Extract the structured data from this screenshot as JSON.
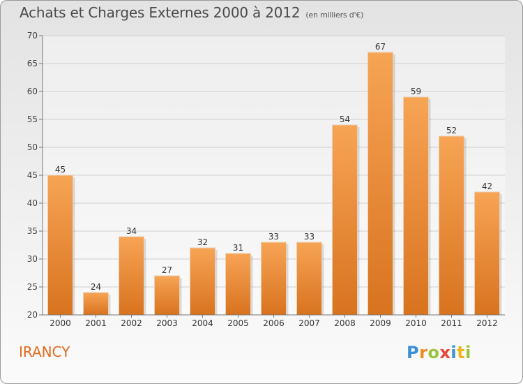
{
  "chart_data": {
    "type": "bar",
    "title": "Achats et Charges Externes 2000 à 2012",
    "subtitle": "(en milliers d'€)",
    "categories": [
      "2000",
      "2001",
      "2002",
      "2003",
      "2004",
      "2005",
      "2006",
      "2007",
      "2008",
      "2009",
      "2010",
      "2011",
      "2012"
    ],
    "values": [
      45,
      24,
      34,
      27,
      32,
      31,
      33,
      33,
      54,
      67,
      59,
      52,
      42
    ],
    "ylim": [
      20,
      70
    ],
    "yticks": [
      20,
      25,
      30,
      35,
      40,
      45,
      50,
      55,
      60,
      65,
      70
    ],
    "grid": true,
    "bar_color": "#f0923a"
  },
  "footer": {
    "commune": "IRANCY",
    "logo_letters": [
      {
        "ch": "P",
        "color": "#3a8fd6"
      },
      {
        "ch": "r",
        "color": "#f08a1c"
      },
      {
        "ch": "o",
        "color": "#9ac43c"
      },
      {
        "ch": "x",
        "color": "#e8453c"
      },
      {
        "ch": "i",
        "color": "#3a8fd6"
      },
      {
        "ch": "t",
        "color": "#f0b41c"
      },
      {
        "ch": "i",
        "color": "#9ac43c"
      }
    ]
  }
}
